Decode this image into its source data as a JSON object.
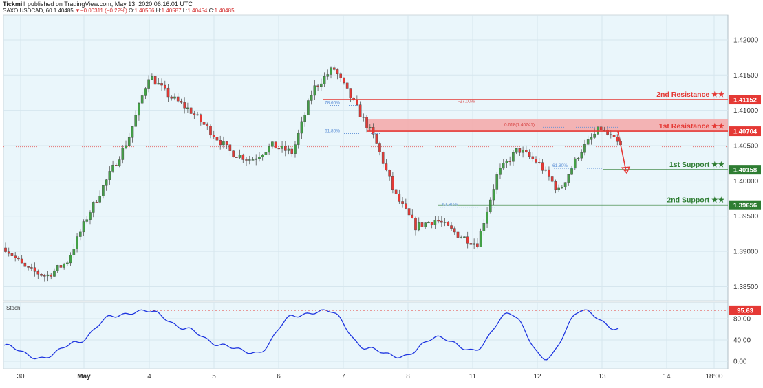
{
  "header": {
    "publisher": "Tickmill",
    "published_line": " published on TradingView.com, May 13, 2020 06:16:01 UTC",
    "symbol": "SAXO:USDCAD, 60",
    "last": "1.40485",
    "change_arrow": "▼",
    "change": "−0.00311 (−0.22%)",
    "ohlc": {
      "O": "1.40566",
      "H": "1.40587",
      "L": "1.40454",
      "C": "1.40485"
    }
  },
  "colors": {
    "background": "#eaf6fb",
    "up_candle": "#43a047",
    "down_candle": "#e53935",
    "resistance": "#e53935",
    "support": "#2e7d32",
    "stoch_line": "#1e35e0"
  },
  "price_axis": {
    "ticks": [
      "1.42000",
      "1.41500",
      "1.41000",
      "1.40500",
      "1.40000",
      "1.39500",
      "1.39000",
      "1.38500"
    ]
  },
  "stoch_axis": {
    "ticks": [
      "80.00",
      "40.00",
      "0.00"
    ]
  },
  "time_axis": {
    "labels": [
      "30",
      "May",
      "4",
      "5",
      "6",
      "7",
      "8",
      "11",
      "12",
      "13",
      "14",
      "18:00"
    ]
  },
  "levels": [
    {
      "name": "2nd Resistance ★★",
      "value": "1.41152",
      "kind": "resistance"
    },
    {
      "name": "1st Resistance ★★",
      "value": "1.40704",
      "kind": "resistance"
    },
    {
      "name": "1st Support ★★",
      "value": "1.40158",
      "kind": "support"
    },
    {
      "name": "2nd Support ★★",
      "value": "1.39656",
      "kind": "support"
    }
  ],
  "fib_labels": [
    "-27.00%",
    "61.80%",
    "0.618(1.40741)",
    "61.80%",
    "61.80%",
    "78.60%"
  ],
  "stoch": {
    "label": "Stoch",
    "marker": "95.63"
  },
  "chart_data": {
    "type": "candlestick",
    "symbol": "SAXO:USDCAD",
    "interval": "60",
    "ylim": [
      1.383,
      1.4235
    ],
    "x_labels": [
      "30",
      "May",
      "4",
      "5",
      "6",
      "7",
      "8",
      "11",
      "12",
      "13",
      "14",
      "18:00"
    ],
    "approx_close_path": [
      {
        "x": "30",
        "y": 1.3905
      },
      {
        "x": "30",
        "y": 1.3875
      },
      {
        "x": "May",
        "y": 1.3865
      },
      {
        "x": "May",
        "y": 1.3885
      },
      {
        "x": "May",
        "y": 1.395
      },
      {
        "x": "May",
        "y": 1.4005
      },
      {
        "x": "4",
        "y": 1.406
      },
      {
        "x": "4",
        "y": 1.415
      },
      {
        "x": "4",
        "y": 1.412
      },
      {
        "x": "5",
        "y": 1.41
      },
      {
        "x": "5",
        "y": 1.407
      },
      {
        "x": "5",
        "y": 1.404
      },
      {
        "x": "6",
        "y": 1.403
      },
      {
        "x": "6",
        "y": 1.405
      },
      {
        "x": "6",
        "y": 1.404
      },
      {
        "x": "7",
        "y": 1.413
      },
      {
        "x": "7",
        "y": 1.416
      },
      {
        "x": "7",
        "y": 1.411
      },
      {
        "x": "8",
        "y": 1.406
      },
      {
        "x": "8",
        "y": 1.398
      },
      {
        "x": "8",
        "y": 1.3935
      },
      {
        "x": "11",
        "y": 1.3945
      },
      {
        "x": "11",
        "y": 1.3925
      },
      {
        "x": "11",
        "y": 1.391
      },
      {
        "x": "12",
        "y": 1.401
      },
      {
        "x": "12",
        "y": 1.4045
      },
      {
        "x": "12",
        "y": 1.4025
      },
      {
        "x": "12",
        "y": 1.3985
      },
      {
        "x": "13",
        "y": 1.404
      },
      {
        "x": "13",
        "y": 1.4075
      },
      {
        "x": "13",
        "y": 1.4049
      }
    ],
    "horizontal_levels": [
      1.41152,
      1.40704,
      1.40158,
      1.39656
    ],
    "resistance_zone": [
      1.40704,
      1.4088
    ],
    "stoch_values_approx": [
      {
        "x": "30",
        "y": 30
      },
      {
        "x": "30",
        "y": 5
      },
      {
        "x": "May",
        "y": 35
      },
      {
        "x": "May",
        "y": 85
      },
      {
        "x": "4",
        "y": 95
      },
      {
        "x": "4",
        "y": 62
      },
      {
        "x": "5",
        "y": 30
      },
      {
        "x": "5",
        "y": 15
      },
      {
        "x": "6",
        "y": 85
      },
      {
        "x": "7",
        "y": 95
      },
      {
        "x": "7",
        "y": 25
      },
      {
        "x": "8",
        "y": 8
      },
      {
        "x": "11",
        "y": 45
      },
      {
        "x": "11",
        "y": 20
      },
      {
        "x": "12",
        "y": 90
      },
      {
        "x": "12",
        "y": 5
      },
      {
        "x": "13",
        "y": 95.63
      },
      {
        "x": "13",
        "y": 60
      }
    ]
  }
}
